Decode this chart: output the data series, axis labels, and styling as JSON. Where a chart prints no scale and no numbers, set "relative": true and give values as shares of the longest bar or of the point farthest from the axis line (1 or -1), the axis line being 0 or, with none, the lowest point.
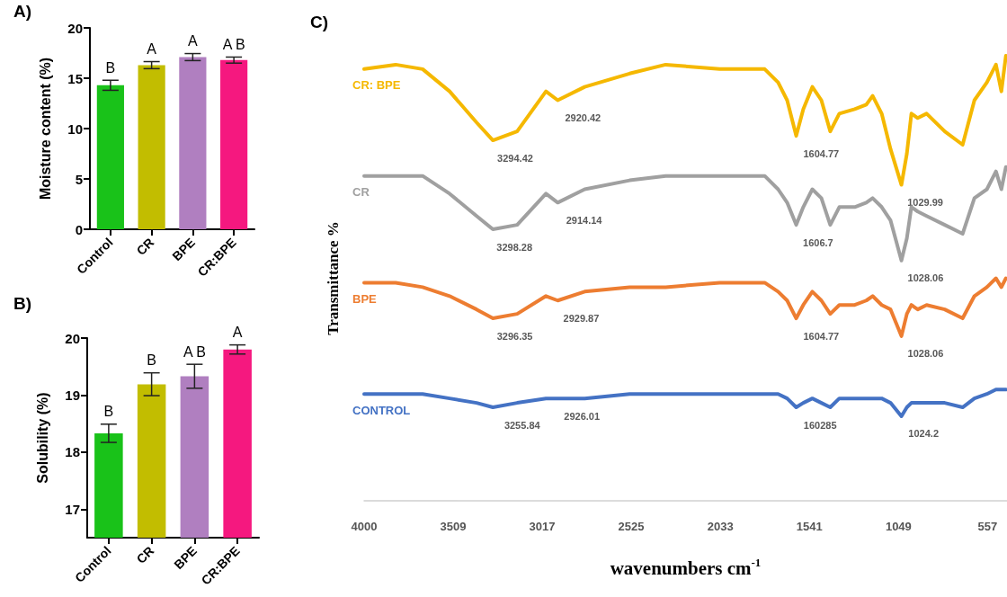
{
  "chart_data": [
    {
      "type": "bar",
      "title": "A)",
      "ylabel": "Moisture content (%)",
      "categories": [
        "Control",
        "CR",
        "BPE",
        "CR:BPE"
      ],
      "values": [
        14.3,
        16.3,
        17.1,
        16.8
      ],
      "colors": [
        "#19c219",
        "#c2bd00",
        "#b07fc0",
        "#f5187f"
      ],
      "errors": [
        0.5,
        0.35,
        0.35,
        0.3
      ],
      "ylim": [
        0,
        20
      ],
      "yticks": [
        0,
        5,
        10,
        15,
        20
      ],
      "grid": false,
      "annotations": [
        {
          "text": "B",
          "x": "Control",
          "y": 14.8
        },
        {
          "text": "A",
          "x": "CR",
          "y": 16.65
        },
        {
          "text": "A",
          "x": "BPE",
          "y": 17.45
        },
        {
          "text": "A B",
          "x": "CR:BPE",
          "y": 17.1
        }
      ]
    },
    {
      "type": "bar",
      "title": "B)",
      "ylabel": "Solubility (%)",
      "categories": [
        "Control",
        "CR",
        "BPE",
        "CR:BPE"
      ],
      "values": [
        18.33,
        19.19,
        19.33,
        19.8
      ],
      "colors": [
        "#19c219",
        "#c2bd00",
        "#b07fc0",
        "#f5187f"
      ],
      "errors": [
        0.16,
        0.2,
        0.21,
        0.08
      ],
      "ylim": [
        16.5,
        20
      ],
      "yticks": [
        17,
        18,
        19,
        20
      ],
      "grid": false,
      "annotations": [
        {
          "text": "B",
          "x": "Control",
          "y": 18.49
        },
        {
          "text": "B",
          "x": "CR",
          "y": 19.39
        },
        {
          "text": "A B",
          "x": "BPE",
          "y": 19.54
        },
        {
          "text": "A",
          "x": "CR:BPE",
          "y": 19.88
        }
      ]
    },
    {
      "type": "line",
      "title": "C)",
      "xlabel": "wavenumbers cm$^{-1}$",
      "ylabel": "Transmittance %",
      "relative": true,
      "marker": "none",
      "grid": false,
      "legend": false,
      "x": [
        4000,
        3826,
        3677,
        3528,
        3379,
        3289,
        3155,
        2996,
        2931,
        2782,
        2534,
        2335,
        2037,
        1788,
        1714,
        1664,
        1614,
        1575,
        1525,
        1475,
        1426,
        1376,
        1291,
        1227,
        1192,
        1142,
        1093,
        1033,
        1003,
        978,
        943,
        894,
        794,
        695,
        630,
        561,
        511,
        481,
        456
      ],
      "xlim": [
        4000,
        450
      ],
      "xticks": [
        4000,
        3509,
        3017,
        2525,
        2033,
        1541,
        1049,
        557
      ],
      "series": [
        {
          "name": "CR: BPE",
          "color": "#f5b800",
          "values": [
            0.97,
            0.98,
            0.97,
            0.92,
            0.85,
            0.81,
            0.83,
            0.92,
            0.9,
            0.93,
            0.96,
            0.98,
            0.97,
            0.97,
            0.94,
            0.9,
            0.82,
            0.88,
            0.93,
            0.9,
            0.83,
            0.87,
            0.88,
            0.89,
            0.91,
            0.87,
            0.79,
            0.71,
            0.78,
            0.87,
            0.86,
            0.87,
            0.83,
            0.8,
            0.9,
            0.94,
            0.98,
            0.92,
            1.0
          ]
        },
        {
          "name": "CR",
          "color": "#a0a0a0",
          "values": [
            0.73,
            0.73,
            0.73,
            0.69,
            0.64,
            0.61,
            0.62,
            0.69,
            0.67,
            0.7,
            0.72,
            0.73,
            0.73,
            0.73,
            0.7,
            0.67,
            0.62,
            0.66,
            0.7,
            0.68,
            0.62,
            0.66,
            0.66,
            0.67,
            0.68,
            0.66,
            0.63,
            0.54,
            0.59,
            0.66,
            0.65,
            0.64,
            0.62,
            0.6,
            0.68,
            0.7,
            0.74,
            0.7,
            0.75
          ]
        },
        {
          "name": "BPE",
          "color": "#ed7d31",
          "values": [
            0.49,
            0.49,
            0.48,
            0.46,
            0.43,
            0.41,
            0.42,
            0.46,
            0.45,
            0.47,
            0.48,
            0.48,
            0.49,
            0.49,
            0.47,
            0.45,
            0.41,
            0.44,
            0.47,
            0.45,
            0.42,
            0.44,
            0.44,
            0.45,
            0.46,
            0.44,
            0.43,
            0.37,
            0.42,
            0.44,
            0.43,
            0.44,
            0.43,
            0.41,
            0.46,
            0.48,
            0.5,
            0.48,
            0.5
          ]
        },
        {
          "name": "CONTROL",
          "color": "#4472c4",
          "values": [
            0.24,
            0.24,
            0.24,
            0.23,
            0.22,
            0.21,
            0.22,
            0.23,
            0.23,
            0.23,
            0.24,
            0.24,
            0.24,
            0.24,
            0.24,
            0.23,
            0.21,
            0.22,
            0.23,
            0.22,
            0.21,
            0.23,
            0.23,
            0.23,
            0.23,
            0.23,
            0.22,
            0.19,
            0.21,
            0.22,
            0.22,
            0.22,
            0.22,
            0.21,
            0.23,
            0.24,
            0.25,
            0.25,
            0.25
          ]
        }
      ],
      "annotations": [
        {
          "text": "3294.42",
          "x": 3294.42,
          "y": 0.81
        },
        {
          "text": "2920.42",
          "x": 2920.42,
          "y": 0.9
        },
        {
          "text": "1604.77",
          "x": 1604.77,
          "y": 0.82
        },
        {
          "text": "1029.99",
          "x": 1029.99,
          "y": 0.71
        },
        {
          "text": "3298.28",
          "x": 3298.28,
          "y": 0.61
        },
        {
          "text": "2914.14",
          "x": 2914.14,
          "y": 0.67
        },
        {
          "text": "1606.7",
          "x": 1606.7,
          "y": 0.62
        },
        {
          "text": "1028.06",
          "x": 1028.06,
          "y": 0.54
        },
        {
          "text": "3296.35",
          "x": 3296.35,
          "y": 0.41
        },
        {
          "text": "2929.87",
          "x": 2929.87,
          "y": 0.45
        },
        {
          "text": "1604.77",
          "x": 1604.77,
          "y": 0.41
        },
        {
          "text": "1028.06",
          "x": 1028.06,
          "y": 0.37
        },
        {
          "text": "3255.84",
          "x": 3255.84,
          "y": 0.21
        },
        {
          "text": "2926.01",
          "x": 2926.01,
          "y": 0.23
        },
        {
          "text": "160285",
          "x": 1602.85,
          "y": 0.21
        },
        {
          "text": "1024.2",
          "x": 1024.2,
          "y": 0.19
        }
      ]
    }
  ]
}
